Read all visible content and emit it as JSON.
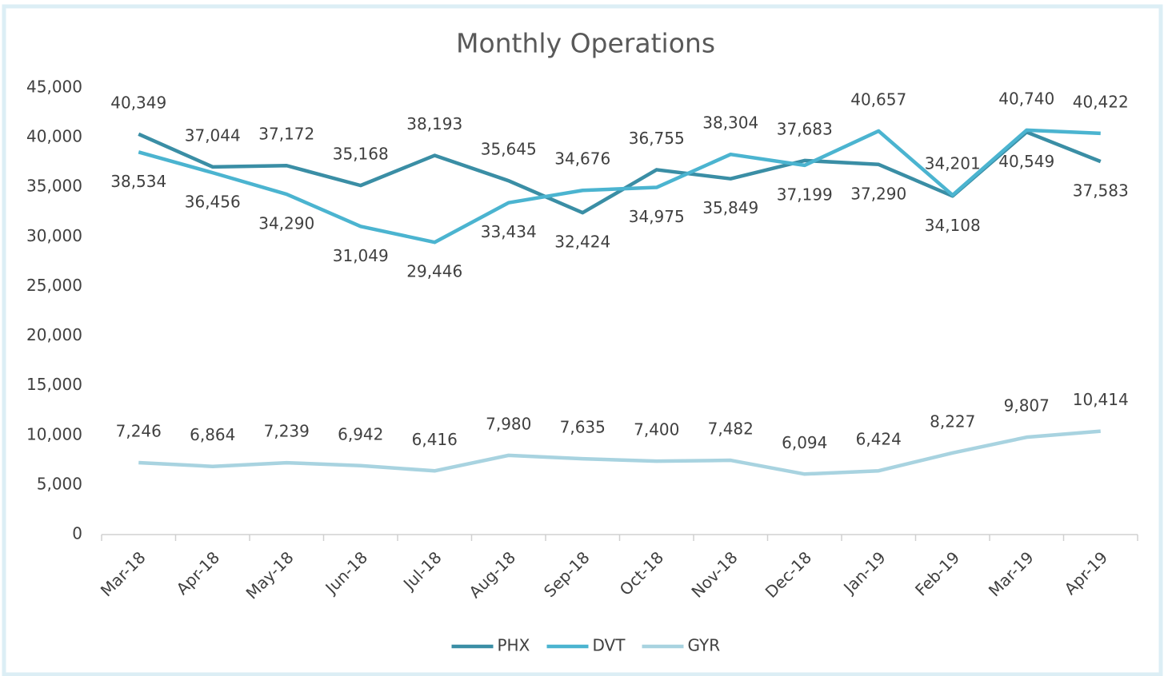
{
  "chart_data": {
    "type": "line",
    "title": "Monthly Operations",
    "categories": [
      "Mar-18",
      "Apr-18",
      "May-18",
      "Jun-18",
      "Jul-18",
      "Aug-18",
      "Sep-18",
      "Oct-18",
      "Nov-18",
      "Dec-18",
      "Jan-19",
      "Feb-19",
      "Mar-19",
      "Apr-19"
    ],
    "series": [
      {
        "name": "PHX",
        "color": "#3a8ea5",
        "values": [
          40349,
          37044,
          37172,
          35168,
          38193,
          35645,
          32424,
          36755,
          35849,
          37683,
          37290,
          34108,
          40549,
          37583
        ],
        "value_labels": [
          "40,349",
          "37,044",
          "37,172",
          "35,168",
          "38,193",
          "35,645",
          "32,424",
          "36,755",
          "35,849",
          "37,683",
          "37,290",
          "34,108",
          "40,549",
          "37,583"
        ]
      },
      {
        "name": "DVT",
        "color": "#4bb4d0",
        "values": [
          38534,
          36456,
          34290,
          31049,
          29446,
          33434,
          34676,
          34975,
          38304,
          37199,
          40657,
          34201,
          40740,
          40422
        ],
        "value_labels": [
          "38,534",
          "36,456",
          "34,290",
          "31,049",
          "29,446",
          "33,434",
          "34,676",
          "34,975",
          "38,304",
          "37,199",
          "40,657",
          "34,201",
          "40,740",
          "40,422"
        ]
      },
      {
        "name": "GYR",
        "color": "#a8d3e0",
        "values": [
          7246,
          6864,
          7239,
          6942,
          6416,
          7980,
          7635,
          7400,
          7482,
          6094,
          6424,
          8227,
          9807,
          10414
        ],
        "value_labels": [
          "7,246",
          "6,864",
          "7,239",
          "6,942",
          "6,416",
          "7,980",
          "7,635",
          "7,400",
          "7,482",
          "6,094",
          "6,424",
          "8,227",
          "9,807",
          "10,414"
        ]
      }
    ],
    "ylim": [
      0,
      45000
    ],
    "yticks": [
      0,
      {
        "value": 5000,
        "label": "5,000"
      },
      {
        "value": 10000,
        "label": "10,000"
      },
      {
        "value": 15000,
        "label": "15,000"
      },
      {
        "value": 20000,
        "label": "20,000"
      },
      {
        "value": 25000,
        "label": "25,000"
      },
      {
        "value": 30000,
        "label": "30,000"
      },
      {
        "value": 35000,
        "label": "35,000"
      },
      {
        "value": 40000,
        "label": "40,000"
      },
      {
        "value": 45000,
        "label": "45,000"
      }
    ],
    "grid": false,
    "legend": "bottom"
  }
}
